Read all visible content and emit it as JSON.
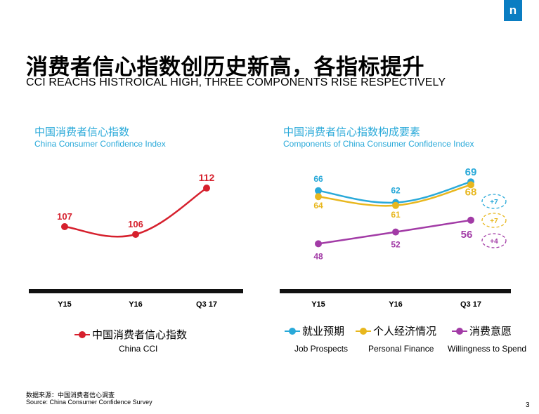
{
  "brand": {
    "logo_text": "n",
    "accent": "#0a7dc2"
  },
  "title": {
    "zh": "消费者信心指数创历史新高，各指标提升",
    "en": "CCI REACHS HISTROICAL HIGH, THREE COMPONENTS RISE RESPECTIVELY"
  },
  "colors": {
    "cci": "#d6202d",
    "job": "#29a9d9",
    "finance": "#e8b71e",
    "spend": "#a23ba6",
    "axis": "#111111",
    "subtitle": "#29a9d9"
  },
  "chart_data": [
    {
      "type": "line",
      "title_zh": "中国消费者信心指数",
      "title_en": "China  Consumer Confidence Index",
      "categories": [
        "Y15",
        "Y16",
        "Q3 17"
      ],
      "series": [
        {
          "name_zh": "中国消费者信心指数",
          "name_en": "China CCI",
          "values": [
            107,
            106,
            112
          ]
        }
      ],
      "data_labels": [
        "107",
        "106",
        "112"
      ],
      "ylim": [
        100,
        115
      ]
    },
    {
      "type": "line",
      "title_zh": "中国消费者信心指数构成要素",
      "title_en": "Components of China  Consumer Confidence Index",
      "categories": [
        "Y15",
        "Y16",
        "Q3 17"
      ],
      "series": [
        {
          "name_zh": "就业预期",
          "name_en": "Job Prospects",
          "values": [
            66,
            62,
            69
          ],
          "labels": [
            "66",
            "62",
            "69"
          ],
          "change": "+7"
        },
        {
          "name_zh": "个人经济情况",
          "name_en": "Personal Finance",
          "values": [
            64,
            61,
            68
          ],
          "labels": [
            "64",
            "61",
            "68"
          ],
          "change": "+7"
        },
        {
          "name_zh": "消费意愿",
          "name_en": "Willingness to Spend",
          "values": [
            48,
            52,
            56
          ],
          "labels": [
            "48",
            "52",
            "56"
          ],
          "change": "+4"
        }
      ],
      "ylim": [
        35,
        75
      ]
    }
  ],
  "footer": {
    "source_zh": "数据来源：中国消费者信心调查",
    "source_en": "Source: China Consumer Confidence Survey",
    "page": "3"
  }
}
